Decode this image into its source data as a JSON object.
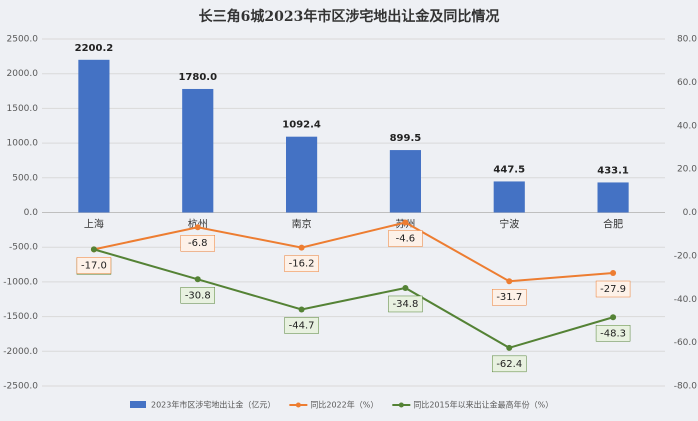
{
  "chart_data": {
    "type": "bar-line",
    "title": "长三角6城2023年市区涉宅地出让金及同比情况",
    "categories": [
      "上海",
      "杭州",
      "南京",
      "苏州",
      "宁波",
      "合肥"
    ],
    "series": [
      {
        "name": "2023年市区涉宅地出让金（亿元）",
        "type": "bar",
        "color": "#4472c4",
        "values": [
          2200.2,
          1780.0,
          1092.4,
          899.5,
          447.5,
          433.1
        ],
        "value_labels": [
          "2200.2",
          "1780.0",
          "1092.4",
          "899.5",
          "447.5",
          "433.1"
        ]
      },
      {
        "name": "同比2022年（%）",
        "type": "line",
        "axis": "y2",
        "color": "#ed7d31",
        "values": [
          -17.0,
          -6.8,
          -16.2,
          -4.6,
          -31.7,
          -27.9
        ],
        "value_labels": [
          "-17.0",
          "-6.8",
          "-16.2",
          "-4.6",
          "-31.7",
          "-27.9"
        ]
      },
      {
        "name": "同比2015年以来出让金最高年份（%）",
        "type": "line",
        "axis": "y2",
        "color": "#548235",
        "values": [
          -17.0,
          -30.8,
          -44.7,
          -34.8,
          -62.4,
          -48.3
        ],
        "value_labels": [
          "-17.0",
          "-30.8",
          "-44.7",
          "-34.8",
          "-62.4",
          "-48.3"
        ]
      }
    ],
    "ylim": [
      -2500,
      2500
    ],
    "yticks": [
      {
        "value": 2500,
        "label": "2500.0"
      },
      {
        "value": 2000,
        "label": "2000.0"
      },
      {
        "value": 1500,
        "label": "1500.0"
      },
      {
        "value": 1000,
        "label": "1000.0"
      },
      {
        "value": 500,
        "label": "500.0"
      },
      {
        "value": 0,
        "label": "0.0"
      },
      {
        "value": -500,
        "label": "-500.0"
      },
      {
        "value": -1000,
        "label": "-1000.0"
      },
      {
        "value": -1500,
        "label": "-1500.0"
      },
      {
        "value": -2000,
        "label": "-2000.0"
      },
      {
        "value": -2500,
        "label": "-2500.0"
      }
    ],
    "y2lim": [
      -80,
      80
    ],
    "y2ticks": [
      {
        "value": 80,
        "label": "80.0"
      },
      {
        "value": 60,
        "label": "60.0"
      },
      {
        "value": 40,
        "label": "40.0"
      },
      {
        "value": 20,
        "label": "20.0"
      },
      {
        "value": 0,
        "label": "0.0"
      },
      {
        "value": -20,
        "label": "-20.0"
      },
      {
        "value": -40,
        "label": "-40.0"
      },
      {
        "value": -60,
        "label": "-60.0"
      },
      {
        "value": -80,
        "label": "-80.0"
      }
    ],
    "grid": true,
    "legend": "bottom"
  }
}
